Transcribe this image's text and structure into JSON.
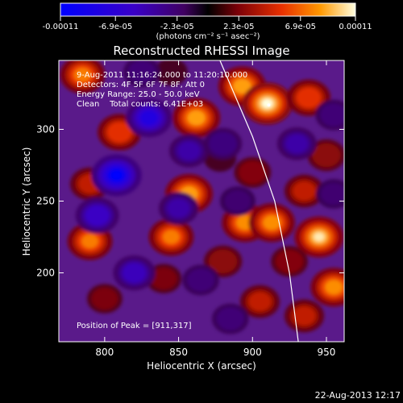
{
  "chart_data": {
    "type": "heatmap",
    "title": "Reconstructed RHESSI Image",
    "xlabel": "Heliocentric X (arcsec)",
    "ylabel": "Heliocentric Y (arcsec)",
    "xlim": [
      769,
      962
    ],
    "ylim": [
      152,
      348
    ],
    "x_ticks": [
      800,
      850,
      900,
      950
    ],
    "y_ticks": [
      200,
      250,
      300
    ],
    "colorbar": {
      "min": -0.00011,
      "max": 0.00011,
      "ticks": [
        {
          "value": -0.00011,
          "label": "-0.00011"
        },
        {
          "value": -6.9e-05,
          "label": "-6.9e-05"
        },
        {
          "value": -2.3e-05,
          "label": "-2.3e-05"
        },
        {
          "value": 2.3e-05,
          "label": "2.3e-05"
        },
        {
          "value": 6.9e-05,
          "label": "6.9e-05"
        },
        {
          "value": 0.00011,
          "label": "0.00011"
        }
      ],
      "unit_text": "(photons cm⁻² s⁻¹ asec⁻²)"
    },
    "annotations": [
      "9-Aug-2011 11:16:24.000 to 11:20:10.000",
      "Detectors: 4F 5F 6F 7F 8F, Att 0",
      "Energy Range: 25.0 - 50.0 keV",
      "Clean    Total counts: 6.41E+03"
    ],
    "peak_label": "Position of Peak = [911,317]",
    "peak": [
      911,
      317
    ],
    "limb_curve": [
      [
        878,
        348
      ],
      [
        900,
        295
      ],
      [
        915,
        250
      ],
      [
        925,
        200
      ],
      [
        931,
        152
      ]
    ],
    "blobs": [
      {
        "x": 785,
        "y": 338,
        "v": 0.8
      },
      {
        "x": 810,
        "y": 298,
        "v": 0.75
      },
      {
        "x": 790,
        "y": 262,
        "v": 0.6
      },
      {
        "x": 790,
        "y": 222,
        "v": 0.8
      },
      {
        "x": 800,
        "y": 182,
        "v": 0.45
      },
      {
        "x": 845,
        "y": 340,
        "v": 0.35
      },
      {
        "x": 862,
        "y": 308,
        "v": 0.9
      },
      {
        "x": 857,
        "y": 255,
        "v": 0.9
      },
      {
        "x": 845,
        "y": 225,
        "v": 0.8
      },
      {
        "x": 840,
        "y": 196,
        "v": 0.45
      },
      {
        "x": 878,
        "y": 280,
        "v": 0.35
      },
      {
        "x": 893,
        "y": 330,
        "v": 0.9
      },
      {
        "x": 910,
        "y": 318,
        "v": 1.0
      },
      {
        "x": 900,
        "y": 270,
        "v": 0.5
      },
      {
        "x": 895,
        "y": 235,
        "v": 0.85
      },
      {
        "x": 913,
        "y": 235,
        "v": 0.85
      },
      {
        "x": 880,
        "y": 208,
        "v": 0.55
      },
      {
        "x": 905,
        "y": 180,
        "v": 0.6
      },
      {
        "x": 938,
        "y": 322,
        "v": 0.75
      },
      {
        "x": 950,
        "y": 282,
        "v": 0.55
      },
      {
        "x": 935,
        "y": 257,
        "v": 0.6
      },
      {
        "x": 945,
        "y": 225,
        "v": 0.95
      },
      {
        "x": 925,
        "y": 208,
        "v": 0.5
      },
      {
        "x": 955,
        "y": 190,
        "v": 0.85
      },
      {
        "x": 935,
        "y": 170,
        "v": 0.6
      },
      {
        "x": 808,
        "y": 268,
        "v": -1.0
      },
      {
        "x": 795,
        "y": 240,
        "v": -0.75
      },
      {
        "x": 830,
        "y": 308,
        "v": -0.85
      },
      {
        "x": 857,
        "y": 285,
        "v": -0.6
      },
      {
        "x": 850,
        "y": 245,
        "v": -0.6
      },
      {
        "x": 820,
        "y": 200,
        "v": -0.7
      },
      {
        "x": 865,
        "y": 195,
        "v": -0.5
      },
      {
        "x": 885,
        "y": 168,
        "v": -0.5
      },
      {
        "x": 880,
        "y": 290,
        "v": -0.55
      },
      {
        "x": 930,
        "y": 290,
        "v": -0.6
      },
      {
        "x": 955,
        "y": 310,
        "v": -0.5
      },
      {
        "x": 955,
        "y": 255,
        "v": -0.45
      },
      {
        "x": 890,
        "y": 250,
        "v": -0.45
      },
      {
        "x": 825,
        "y": 340,
        "v": -0.5
      }
    ]
  },
  "footer": {
    "timestamp": "22-Aug-2013 12:17"
  }
}
